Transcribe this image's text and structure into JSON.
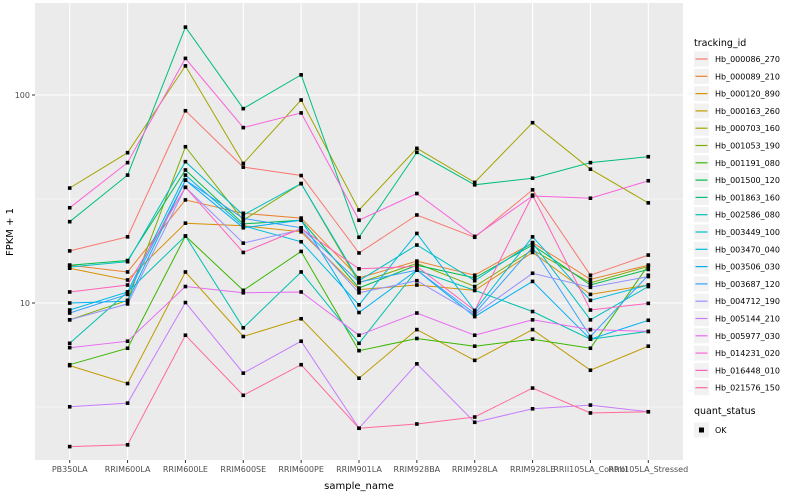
{
  "chart_data": {
    "type": "line",
    "title": "",
    "xlabel": "sample_name",
    "ylabel": "FPKM + 1",
    "y_scale": "log10",
    "y_major_ticks": [
      10,
      100
    ],
    "y_minor_gridlines": [
      3.162,
      31.623
    ],
    "ylim": [
      1.76,
      277
    ],
    "grid": true,
    "panel_bg": "#EBEBEB",
    "grid_color": "#FFFFFF",
    "tick_label_color": "#4D4D4D",
    "point_shape": "filled-square",
    "point_color": "#000000",
    "categories": [
      "PB350LA",
      "RRIM600LA",
      "RRIM600LE",
      "RRIM600SE",
      "RRIM600PE",
      "RRIM901LA",
      "RRIM928BA",
      "RRIM928LA",
      "RRIM928LE",
      "RRII105LA_Control",
      "RRII105LA_Stressed"
    ],
    "legend": {
      "position": "right",
      "color_legend_title": "tracking_id",
      "shape_legend_title": "quant_status",
      "shape_legend_items": [
        {
          "label": "OK",
          "shape": "filled-square",
          "color": "#000000"
        }
      ]
    },
    "series": [
      {
        "name": "Hb_000086_270",
        "color": "#F8766D",
        "values": [
          17.8,
          20.8,
          84,
          45,
          41,
          17.4,
          26.5,
          20.7,
          35,
          13.6,
          17
        ]
      },
      {
        "name": "Hb_000089_210",
        "color": "#EA8331",
        "values": [
          15.2,
          14.1,
          31.3,
          27,
          25.6,
          13.2,
          15.9,
          13.6,
          19.5,
          13,
          15.2
        ]
      },
      {
        "name": "Hb_000120_890",
        "color": "#D89000",
        "values": [
          14.7,
          12.9,
          24.2,
          23.5,
          22,
          11.6,
          12.2,
          11.5,
          17.5,
          11,
          12.2
        ]
      },
      {
        "name": "Hb_000163_260",
        "color": "#C09B00",
        "values": [
          5,
          4.1,
          14.1,
          6.9,
          8.4,
          4.35,
          7.45,
          5.3,
          7.45,
          4.75,
          6.2
        ]
      },
      {
        "name": "Hb_000703_160",
        "color": "#A3A500",
        "values": [
          35.7,
          52.8,
          138,
          46.9,
          94.6,
          28,
          55.4,
          38,
          73.6,
          44,
          30.3
        ]
      },
      {
        "name": "Hb_001053_190",
        "color": "#7CAE00",
        "values": [
          8.3,
          10.3,
          56.4,
          25,
          37.5,
          12.5,
          15.5,
          12,
          18,
          12.5,
          15
        ]
      },
      {
        "name": "Hb_001191_080",
        "color": "#39B600",
        "values": [
          5.05,
          6.06,
          21,
          11.5,
          17.7,
          5.9,
          6.75,
          6.2,
          6.7,
          6.06,
          15.2
        ]
      },
      {
        "name": "Hb_001500_120",
        "color": "#00BB4E",
        "values": [
          15.2,
          16,
          43.6,
          24,
          25,
          11.8,
          15.2,
          13.2,
          19,
          12.2,
          14.5
        ]
      },
      {
        "name": "Hb_001863_160",
        "color": "#00BF7D",
        "values": [
          24.6,
          41.2,
          212,
          86,
          125,
          20.7,
          53,
          37,
          39.8,
          47.3,
          50.5
        ]
      },
      {
        "name": "Hb_002586_080",
        "color": "#00C0AF",
        "values": [
          6.4,
          11.3,
          21,
          7.6,
          14.1,
          6.4,
          14.4,
          11.5,
          9.1,
          6.7,
          7.3
        ]
      },
      {
        "name": "Hb_003449_100",
        "color": "#00BFC4",
        "values": [
          14.9,
          15.8,
          47.8,
          26.5,
          37.5,
          12.8,
          19,
          12.8,
          19.5,
          8.3,
          12
        ]
      },
      {
        "name": "Hb_003470_040",
        "color": "#00BAE0",
        "values": [
          9.25,
          11.3,
          41.2,
          23.5,
          19.7,
          9.8,
          21.6,
          9.2,
          20.8,
          10.3,
          12.2
        ]
      },
      {
        "name": "Hb_003506_030",
        "color": "#00B0F6",
        "values": [
          10,
          10.2,
          39,
          23,
          25,
          9,
          14.4,
          8.6,
          12.7,
          6.7,
          8.26
        ]
      },
      {
        "name": "Hb_003687_120",
        "color": "#35A2FF",
        "values": [
          8.95,
          11,
          39,
          25.5,
          23,
          12.6,
          14.4,
          8.9,
          18.5,
          6.9,
          13.6
        ]
      },
      {
        "name": "Hb_004712_190",
        "color": "#9590FF",
        "values": [
          8.3,
          9.9,
          36,
          19.4,
          22.5,
          11.2,
          12.8,
          8.8,
          13.9,
          11.9,
          13.4
        ]
      },
      {
        "name": "Hb_005144_210",
        "color": "#C77CFF",
        "values": [
          3.17,
          3.3,
          10.05,
          4.6,
          6.55,
          2.5,
          5.1,
          2.67,
          3.1,
          3.23,
          3
        ]
      },
      {
        "name": "Hb_005977_030",
        "color": "#E76BF3",
        "values": [
          6.1,
          6.55,
          12,
          11.2,
          11.3,
          7,
          8.95,
          7,
          8.3,
          7.45,
          7.3
        ]
      },
      {
        "name": "Hb_014231_020",
        "color": "#FA62DB",
        "values": [
          28.7,
          47.3,
          150,
          69.7,
          82,
          25,
          33.6,
          20.9,
          32.7,
          31.9,
          38.7
        ]
      },
      {
        "name": "Hb_016448_010",
        "color": "#FF62BC",
        "values": [
          11.3,
          12.2,
          36,
          17.5,
          22.8,
          14.6,
          15,
          9.2,
          33,
          9.25,
          9.96
        ]
      },
      {
        "name": "Hb_021576_150",
        "color": "#FF6A98",
        "values": [
          2.04,
          2.08,
          7,
          3.6,
          5.05,
          2.5,
          2.62,
          2.83,
          3.9,
          2.96,
          3
        ]
      }
    ]
  }
}
